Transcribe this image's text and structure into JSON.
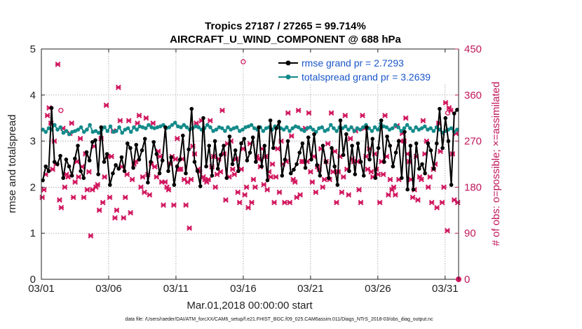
{
  "chart_data": {
    "type": "line",
    "title_line1": "Tropics 27187 / 27265 = 99.714%",
    "title_line2": "AIRCRAFT_U_WIND_COMPONENT @ 688 hPa",
    "xlabel": "Mar.01,2018 00:00:00 start",
    "ylabel": "rmse and totalspread",
    "y2label": "# of obs: o=possible; ×=assimilated",
    "footer": "data file: /Users/raeder/DAI/ATM_forcXX/CAM6_setup/f.e21.FHIST_BGC.f09_025.CAM6assim.011/Diags_NTrS_2018-03/obs_diag_output.nc",
    "x_ticks": [
      "03/01",
      "03/06",
      "03/11",
      "03/16",
      "03/21",
      "03/26",
      "03/31"
    ],
    "x_tick_days": [
      1,
      6,
      11,
      16,
      21,
      26,
      31
    ],
    "xlim": [
      1,
      32
    ],
    "ylim": [
      0,
      5
    ],
    "y_ticks": [
      "0",
      "1",
      "2",
      "3",
      "4",
      "5"
    ],
    "y2lim": [
      0,
      450
    ],
    "y2_ticks": [
      "0",
      "90",
      "180",
      "270",
      "360",
      "450"
    ],
    "legend": [
      {
        "label": "rmse grand pr = 2.7293",
        "color": "#000000"
      },
      {
        "label": "totalspread grand pr = 3.2639",
        "color": "#138a8a"
      }
    ],
    "colors": {
      "rmse": "#000000",
      "spread": "#138a8a",
      "obs": "#d0155d"
    },
    "series": [
      {
        "name": "rmse",
        "values": [
          2.15,
          2.45,
          2.35,
          3.72,
          2.55,
          2.5,
          2.68,
          2.2,
          2.6,
          2.45,
          2.25,
          2.62,
          2.9,
          2.35,
          2.2,
          2.76,
          2.58,
          2.98,
          3.02,
          2.28,
          3.3,
          2.55,
          2.72,
          2.05,
          2.3,
          2.48,
          2.4,
          2.65,
          2.35,
          2.95,
          2.85,
          2.42,
          2.92,
          2.6,
          2.8,
          3.05,
          2.1,
          2.55,
          2.98,
          2.72,
          2.3,
          2.58,
          3.3,
          2.35,
          2.65,
          2.05,
          2.45,
          2.6,
          3.12,
          2.3,
          2.82,
          3.7,
          2.55,
          2.35,
          2.02,
          3.5,
          2.45,
          2.9,
          2.25,
          3.0,
          2.4,
          2.7,
          2.9,
          2.2,
          3.1,
          2.5,
          2.8,
          2.35,
          2.95,
          3.05,
          2.58,
          2.75,
          3.08,
          2.55,
          3.3,
          2.45,
          2.9,
          2.15,
          3.45,
          2.85,
          3.28,
          3.42,
          2.25,
          2.6,
          3.0,
          2.3,
          2.38,
          2.5,
          2.75,
          2.95,
          2.42,
          3.08,
          2.6,
          3.15,
          2.48,
          2.25,
          2.9,
          2.55,
          2.2,
          2.85,
          2.45,
          2.05,
          3.45,
          2.7,
          3.15,
          2.35,
          2.9,
          2.28,
          2.95,
          2.55,
          2.25,
          3.3,
          2.6,
          3.05,
          2.2,
          2.85,
          3.45,
          2.55,
          3.1,
          2.9,
          2.45,
          2.75,
          3.0,
          2.2,
          3.2,
          1.95,
          2.9,
          1.95,
          2.95,
          2.4,
          2.5,
          2.3,
          2.95,
          2.8,
          2.4,
          2.95,
          3.7,
          2.85,
          3.5,
          3.0,
          2.05,
          3.6,
          3.68
        ]
      },
      {
        "name": "totalspread",
        "values": [
          3.25,
          3.2,
          3.28,
          3.25,
          3.35,
          3.25,
          3.3,
          3.18,
          3.22,
          3.15,
          3.2,
          3.22,
          3.25,
          3.3,
          3.2,
          3.25,
          3.35,
          3.2,
          3.22,
          3.18,
          3.25,
          3.3,
          3.22,
          3.32,
          3.2,
          3.22,
          3.3,
          3.18,
          3.25,
          3.28,
          3.2,
          3.3,
          3.25,
          3.32,
          3.3,
          3.28,
          3.35,
          3.3,
          3.28,
          3.3,
          3.32,
          3.35,
          3.28,
          3.3,
          3.35,
          3.4,
          3.32,
          3.3,
          3.35,
          3.3,
          3.25,
          3.28,
          3.32,
          3.3,
          3.25,
          3.28,
          3.35,
          3.3,
          3.22,
          3.25,
          3.3,
          3.28,
          3.22,
          3.3,
          3.25,
          3.28,
          3.3,
          3.22,
          3.25,
          3.3,
          3.32,
          3.35,
          3.28,
          3.25,
          3.3,
          3.22,
          3.28,
          3.3,
          3.25,
          3.32,
          3.3,
          3.28,
          3.25,
          3.3,
          3.22,
          3.28,
          3.32,
          3.3,
          3.25,
          3.22,
          3.28,
          3.3,
          3.25,
          3.2,
          3.28,
          3.3,
          3.22,
          3.25,
          3.35,
          3.28,
          3.22,
          3.3,
          3.28,
          3.32,
          3.25,
          3.3,
          3.22,
          3.28,
          3.25,
          3.3,
          3.35,
          3.28,
          3.22,
          3.3,
          3.25,
          3.38,
          3.32,
          3.3,
          3.25,
          3.28,
          3.35,
          3.3,
          3.22,
          3.28,
          3.35,
          3.28,
          3.22,
          3.3,
          3.25,
          3.28,
          3.32,
          3.25,
          3.28,
          3.22,
          3.3,
          3.25,
          3.18,
          3.22,
          3.25,
          3.28,
          3.2,
          3.25
        ]
      },
      {
        "name": "obs",
        "values": [
          160,
          175,
          205,
          320,
          335,
          305,
          215,
          270,
          225,
          420,
          155,
          140,
          295,
          180,
          205,
          200,
          285,
          305,
          160,
          190,
          230,
          200,
          275,
          220,
          160,
          245,
          175,
          210,
          85,
          175,
          260,
          180,
          185,
          135,
          275,
          150,
          200,
          340,
          240,
          160,
          240,
          290,
          120,
          135,
          375,
          310,
          220,
          120,
          160,
          205,
          310,
          130,
          195,
          225,
          230,
          305,
          320,
          180,
          200,
          170,
          315,
          205,
          165,
          225,
          305,
          220,
          200,
          250,
          240,
          190,
          145,
          190,
          180,
          175,
          225,
          240,
          145,
          235,
          275,
          215,
          215,
          235,
          195,
          145,
          190,
          100,
          195,
          260,
          245,
          305,
          215,
          210,
          310,
          200,
          195,
          190,
          195,
          310,
          220,
          240,
          180,
          205,
          235,
          210,
          330,
          245,
          155,
          265,
          200,
          270,
          215,
          205,
          235,
          170,
          150,
          215,
          255,
          165,
          180,
          140,
          265,
          150,
          195,
          180,
          240,
          235,
          220,
          255,
          185,
          240,
          175,
          210,
          200,
          225,
          150,
          200,
          255,
          170,
          270,
          225,
          150,
          230,
          325,
          150,
          280,
          195,
          190,
          160,
          330,
          165,
          230,
          230,
          295,
          230,
          325,
          210,
          190,
          240,
          170,
          220,
          215,
          255,
          180,
          195,
          230,
          265,
          195,
          325,
          210,
          250,
          150,
          210,
          240,
          170,
          200,
          320,
          215,
          165,
          275,
          235,
          230,
          290,
          230,
          175,
          150,
          320,
          295,
          240,
          215,
          255,
          210,
          200,
          245,
          215,
          205,
          150,
          230,
          205,
          320,
          240,
          165,
          195,
          175,
          180,
          165,
          300,
          195,
          270,
          285,
          270,
          315,
          245,
          230,
          195,
          160,
          175,
          240,
          155,
          200,
          195,
          310,
          245,
          270,
          180,
          200,
          150,
          215,
          225,
          140,
          305,
          250,
          150,
          180,
          345,
          95,
          335,
          330,
          245,
          155,
          285,
          150
        ]
      }
    ]
  }
}
